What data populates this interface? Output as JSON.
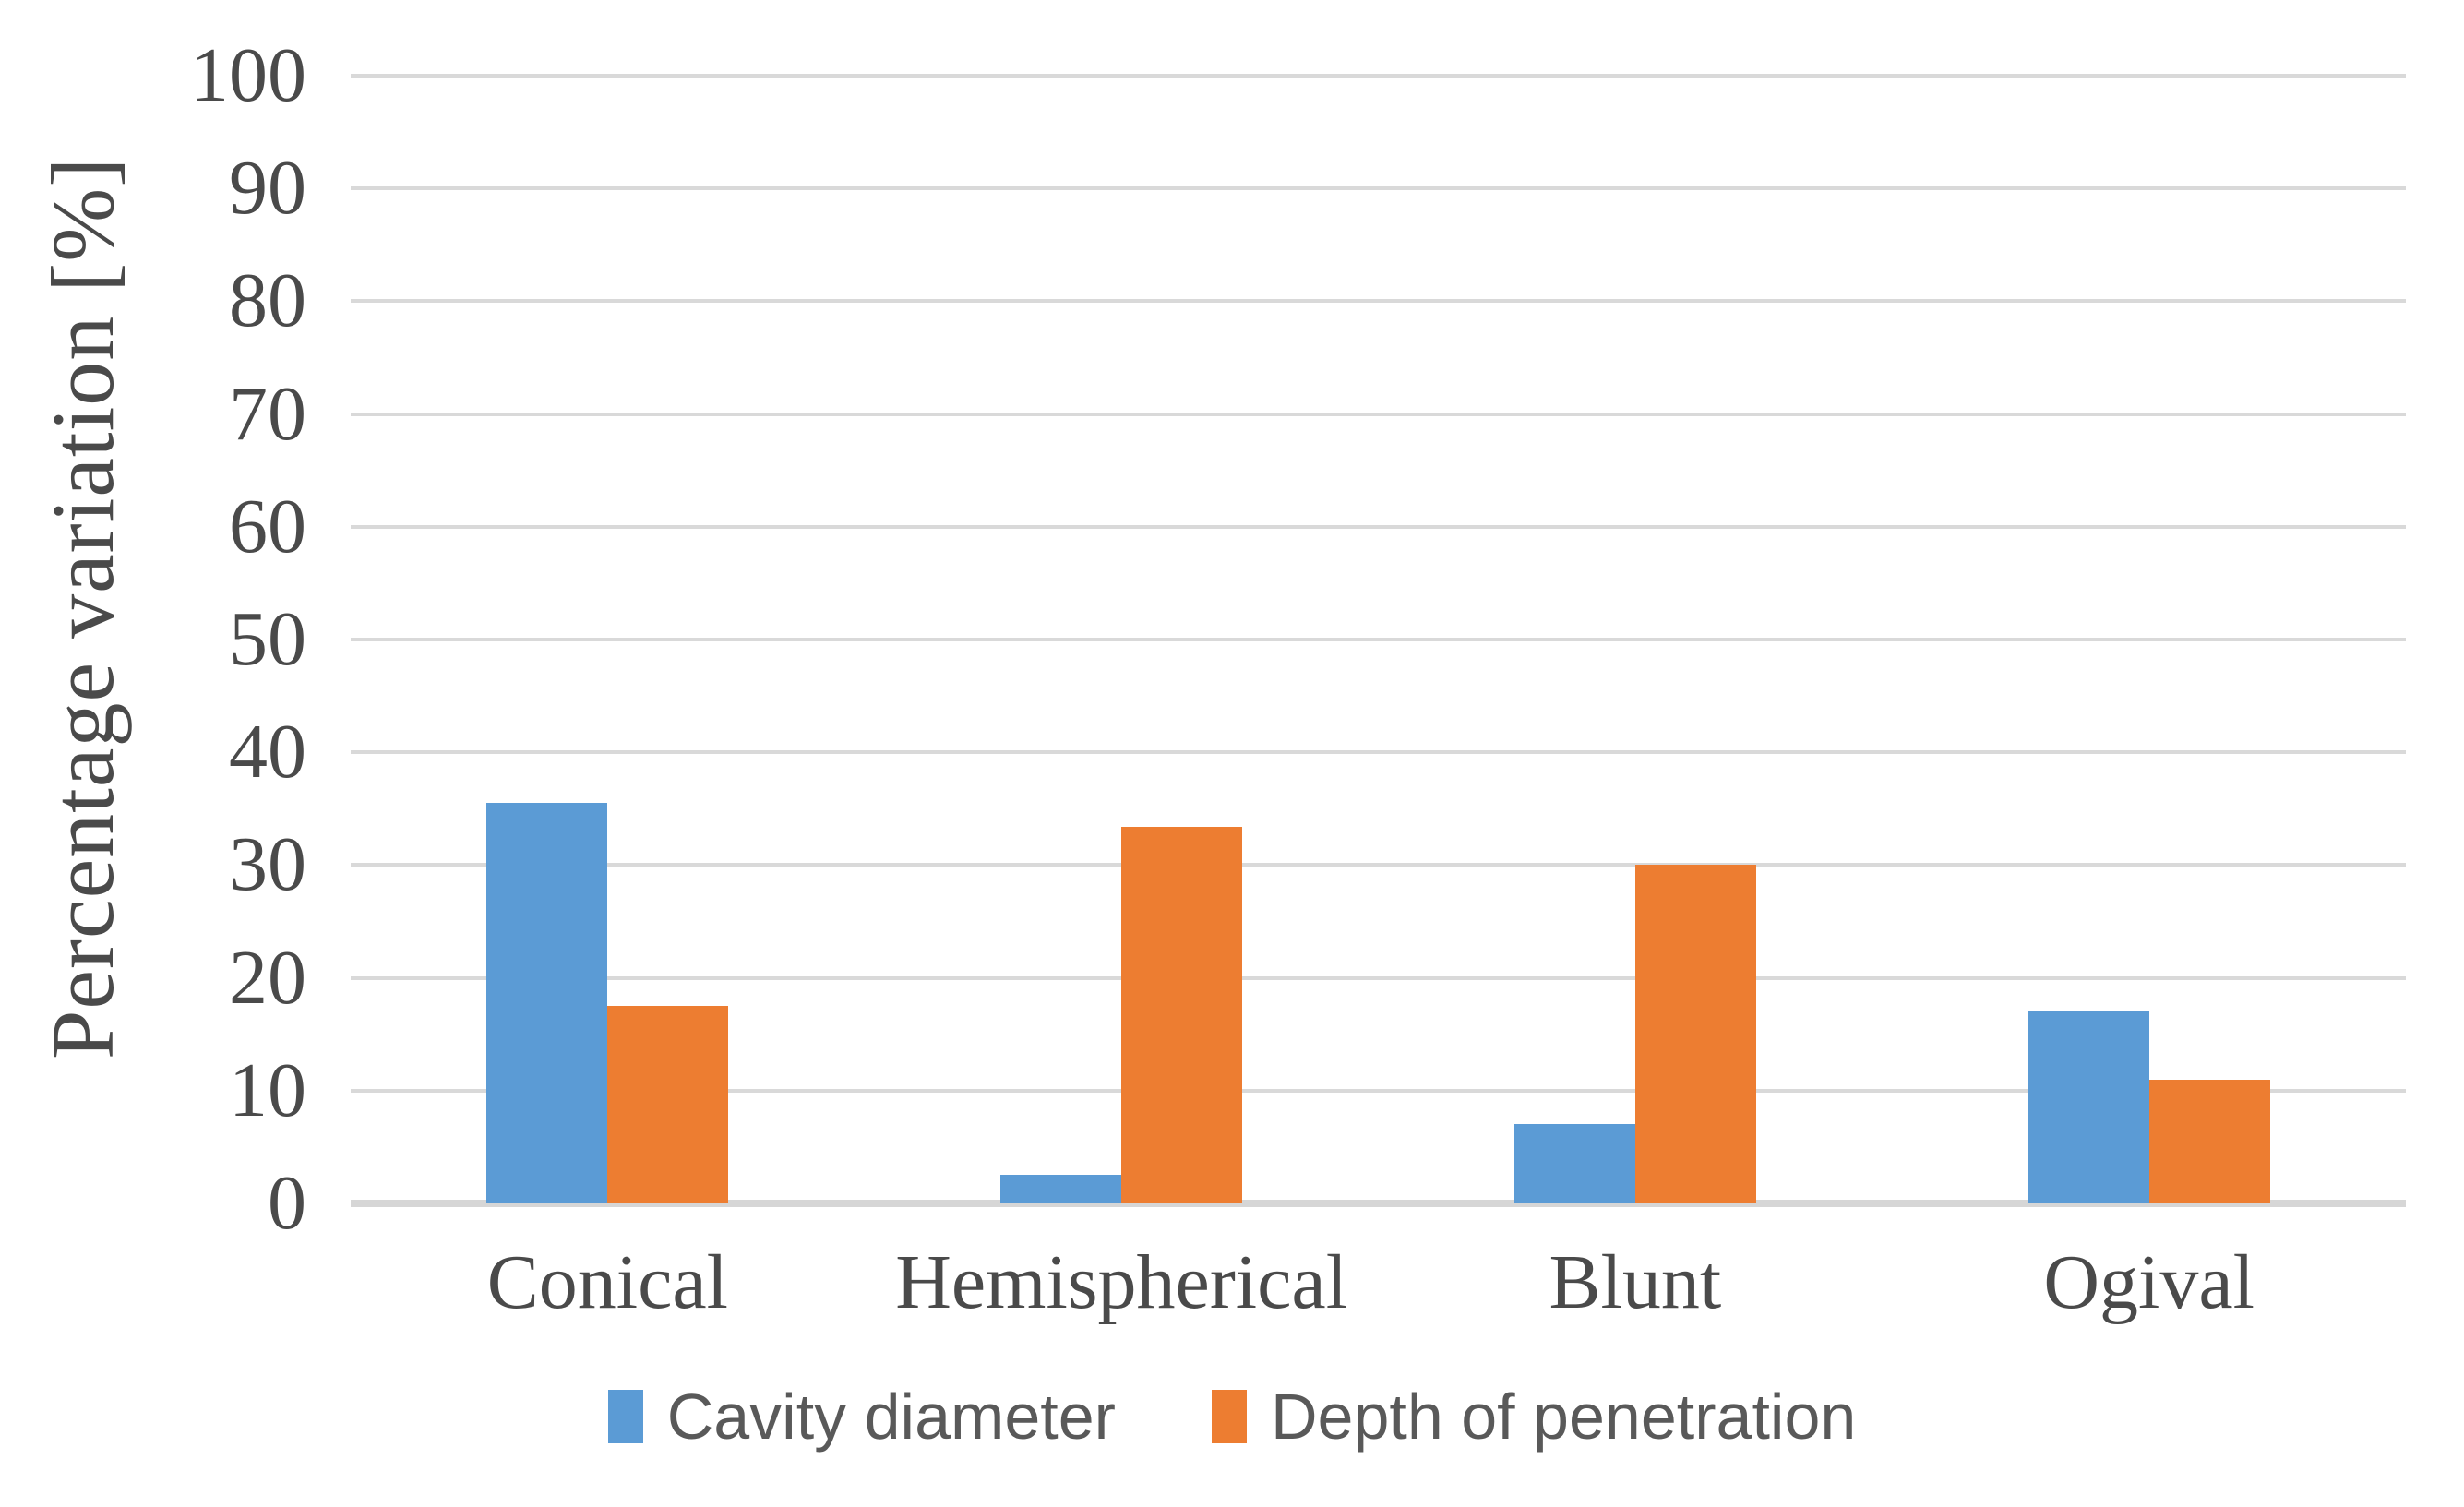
{
  "chart_data": {
    "type": "bar",
    "title": "",
    "ylabel": "Percentage variation [%]",
    "xlabel": "",
    "ylim": [
      0,
      100
    ],
    "ytick_step": 10,
    "ytick_labels": [
      "0",
      "10",
      "20",
      "30",
      "40",
      "50",
      "60",
      "70",
      "80",
      "90",
      "100"
    ],
    "grid": true,
    "legend_position": "bottom",
    "categories": [
      "Conical",
      "Hemispherical",
      "Blunt",
      "Ogival"
    ],
    "series": [
      {
        "name": "Cavity diameter",
        "color": "#5B9BD5",
        "values": [
          35.5,
          2.5,
          7,
          17
        ]
      },
      {
        "name": "Depth of penetration",
        "color": "#ED7D31",
        "values": [
          17.5,
          33.4,
          30,
          11
        ]
      }
    ],
    "colors": {
      "series_blue": "#5B9BD5",
      "series_orange": "#ED7D31",
      "gridline": "#D9D9D9",
      "axis_line": "#D6D6D6",
      "axis_text": "#4A4A4A",
      "legend_text": "#595959",
      "background": "#FFFFFF"
    }
  }
}
